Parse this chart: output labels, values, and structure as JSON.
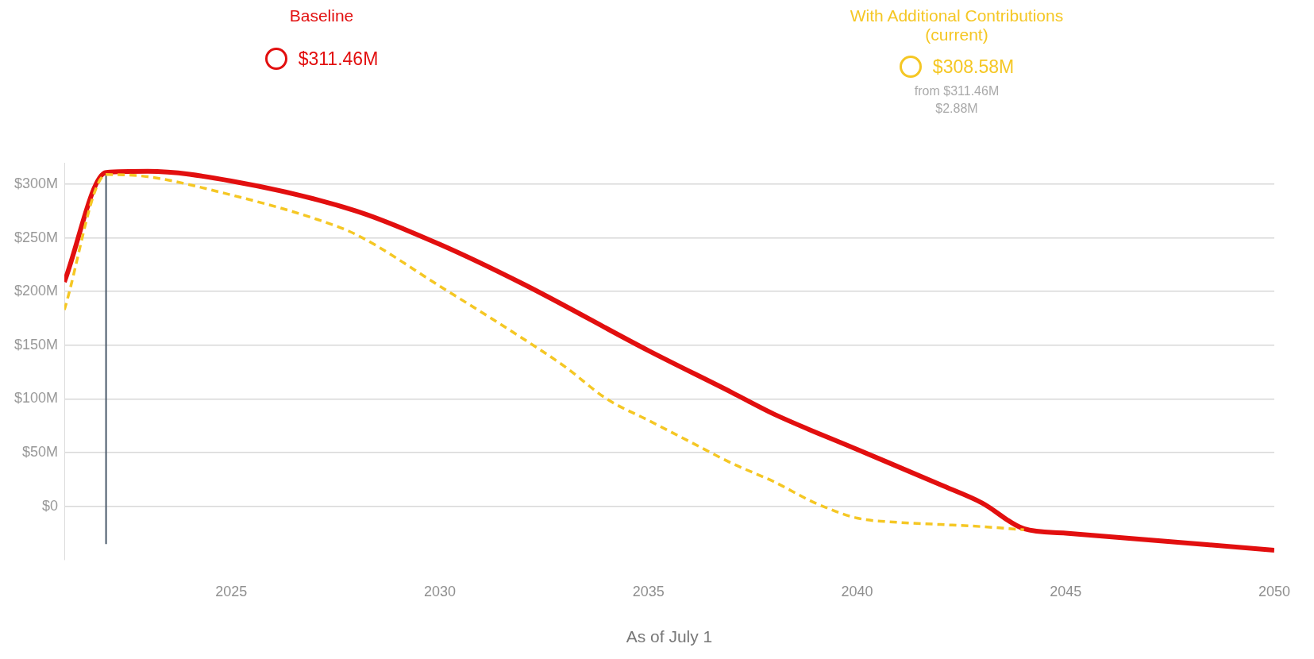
{
  "chart_data": {
    "type": "line",
    "xlabel": "As of July 1",
    "legend": "top",
    "grid": "y",
    "marker": "none",
    "x": [
      2021,
      2022,
      2023,
      2025,
      2028,
      2030,
      2032,
      2035,
      2037,
      2038,
      2040,
      2042,
      2043,
      2044,
      2045,
      2050
    ],
    "series": [
      {
        "name": "Baseline",
        "color": "#e20f0f",
        "line_style": "solid",
        "values": [
          209,
          311,
          312,
          303,
          275,
          244,
          207,
          145,
          106,
          86,
          53,
          20,
          3,
          -21,
          -25,
          -41
        ]
      },
      {
        "name": "With Additional Contributions (current)",
        "color": "#f5c724",
        "line_style": "dashed",
        "x": [
          2021,
          2022,
          2023,
          2025,
          2027,
          2028,
          2030,
          2032,
          2033,
          2034,
          2035,
          2036,
          2037,
          2038,
          2039,
          2040,
          2041,
          2042,
          2043,
          2044
        ],
        "values": [
          183,
          309,
          307,
          290,
          268,
          253,
          205,
          156,
          130,
          100,
          80,
          60,
          40,
          23,
          3,
          -11,
          -15,
          -17,
          -19,
          -22
        ]
      }
    ],
    "annotations": [
      "$311.46M",
      "$308.58M",
      "from $311.46M",
      "$2.88M"
    ],
    "ref_lines": [
      {
        "axis": "x",
        "value": 2022,
        "color": "#4a5a6a"
      }
    ],
    "xlim": [
      2021,
      2050
    ],
    "xticks": [
      2025,
      2030,
      2035,
      2040,
      2045,
      2050
    ],
    "ylim": [
      -50,
      320
    ],
    "yticks": [
      {
        "value": 0,
        "label": "$0"
      },
      {
        "value": 50,
        "label": "$50M"
      },
      {
        "value": 100,
        "label": "$100M"
      },
      {
        "value": 150,
        "label": "$150M"
      },
      {
        "value": 200,
        "label": "$200M"
      },
      {
        "value": 250,
        "label": "$250M"
      },
      {
        "value": 300,
        "label": "$300M"
      }
    ]
  }
}
